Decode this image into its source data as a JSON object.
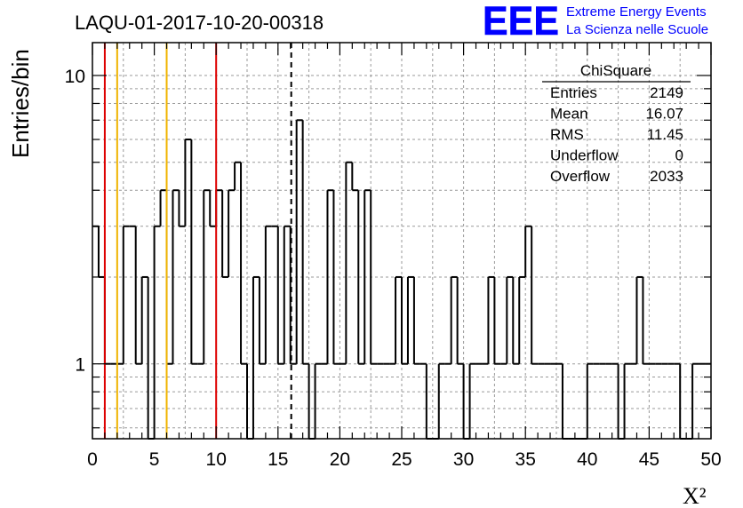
{
  "run_title": "LAQU-01-2017-10-20-00318",
  "logo": {
    "letters": "EEE",
    "line1": "Extreme Energy Events",
    "line2": "La Scienza nelle Scuole",
    "color": "#0000ff"
  },
  "stats_box": {
    "title": "ChiSquare",
    "rows": [
      {
        "label": "Entries",
        "value": "2149"
      },
      {
        "label": "Mean",
        "value": "16.07"
      },
      {
        "label": "RMS",
        "value": "11.45"
      },
      {
        "label": "Underflow",
        "value": "0"
      },
      {
        "label": "Overflow",
        "value": "2033"
      }
    ]
  },
  "chart_data": {
    "type": "histogram",
    "title": "LAQU-01-2017-10-20-00318",
    "xlabel": "X²",
    "ylabel": "Entries/bin",
    "xlim": [
      0,
      50
    ],
    "ylim": [
      0.55,
      13
    ],
    "y_scale": "log",
    "bin_width": 0.5,
    "x_ticks": [
      0,
      5,
      10,
      15,
      20,
      25,
      30,
      35,
      40,
      45,
      50
    ],
    "y_tick_labels": [
      {
        "value": 1,
        "label": "1"
      },
      {
        "value": 10,
        "label": "10"
      }
    ],
    "grid": true,
    "bin_counts": [
      3,
      2,
      1,
      1,
      1,
      3,
      3,
      1,
      2,
      0,
      3,
      4,
      1,
      4,
      3,
      6,
      1,
      1,
      4,
      3,
      4,
      2,
      4,
      5,
      1,
      0,
      2,
      1,
      3,
      3,
      1,
      3,
      1,
      7,
      1,
      0,
      1,
      1,
      4,
      1,
      1,
      5,
      4,
      1,
      4,
      1,
      1,
      1,
      1,
      2,
      1,
      2,
      1,
      1,
      0,
      0,
      1,
      1,
      2,
      1,
      0,
      1,
      1,
      1,
      2,
      1,
      1,
      2,
      1,
      2,
      3,
      1,
      1,
      1,
      1,
      1,
      0,
      0,
      0,
      0,
      1,
      1,
      1,
      1,
      1,
      0,
      1,
      1,
      2,
      1,
      1,
      1,
      1,
      1,
      1,
      0,
      0,
      1,
      1,
      1
    ],
    "vertical_lines": [
      {
        "x": 1,
        "color": "#dd0000",
        "style": "solid"
      },
      {
        "x": 2,
        "color": "#f0b400",
        "style": "solid"
      },
      {
        "x": 6,
        "color": "#f0b400",
        "style": "solid"
      },
      {
        "x": 10,
        "color": "#dd0000",
        "style": "solid"
      },
      {
        "x": 16.07,
        "color": "#000000",
        "style": "dashed"
      }
    ]
  }
}
